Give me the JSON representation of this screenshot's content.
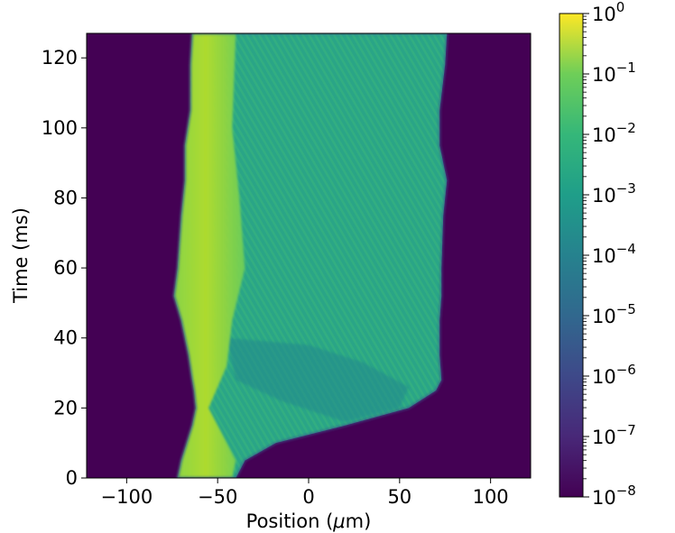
{
  "chart_data": {
    "type": "heatmap",
    "title": "",
    "xlabel_main": "Position (",
    "xlabel_mu": "μ",
    "xlabel_rest": "m)",
    "ylabel": "Time (ms)",
    "xlim": [
      -122,
      122
    ],
    "ylim": [
      0,
      127
    ],
    "x_ticks": [
      {
        "value": -100,
        "label": "−100"
      },
      {
        "value": -50,
        "label": "−50"
      },
      {
        "value": 0,
        "label": "0"
      },
      {
        "value": 50,
        "label": "50"
      },
      {
        "value": 100,
        "label": "100"
      }
    ],
    "y_ticks": [
      {
        "value": 0,
        "label": "0"
      },
      {
        "value": 20,
        "label": "20"
      },
      {
        "value": 40,
        "label": "40"
      },
      {
        "value": 60,
        "label": "60"
      },
      {
        "value": 80,
        "label": "80"
      },
      {
        "value": 100,
        "label": "100"
      },
      {
        "value": 120,
        "label": "120"
      }
    ],
    "colorbar": {
      "scale": "log",
      "colormap": "viridis",
      "range": [
        1e-08,
        1
      ],
      "ticks": [
        {
          "exp": 0,
          "base": "10",
          "sup": "0"
        },
        {
          "exp": -1,
          "base": "10",
          "sup": "−1"
        },
        {
          "exp": -2,
          "base": "10",
          "sup": "−2"
        },
        {
          "exp": -3,
          "base": "10",
          "sup": "−3"
        },
        {
          "exp": -4,
          "base": "10",
          "sup": "−4"
        },
        {
          "exp": -5,
          "base": "10",
          "sup": "−5"
        },
        {
          "exp": -6,
          "base": "10",
          "sup": "−6"
        },
        {
          "exp": -7,
          "base": "10",
          "sup": "−7"
        },
        {
          "exp": -8,
          "base": "10",
          "sup": "−8"
        }
      ]
    },
    "background_value": 1e-08,
    "boundary": [
      {
        "t": 0,
        "left": -72,
        "right": -40
      },
      {
        "t": 5,
        "left": -70,
        "right": -35
      },
      {
        "t": 10,
        "left": -67,
        "right": -18
      },
      {
        "t": 15,
        "left": -64,
        "right": 20
      },
      {
        "t": 20,
        "left": -62,
        "right": 55
      },
      {
        "t": 25,
        "left": -63,
        "right": 70
      },
      {
        "t": 28,
        "left": -64,
        "right": 73
      },
      {
        "t": 35,
        "left": -66,
        "right": 72
      },
      {
        "t": 45,
        "left": -70,
        "right": 72
      },
      {
        "t": 52,
        "left": -74,
        "right": 73
      },
      {
        "t": 60,
        "left": -72,
        "right": 73
      },
      {
        "t": 75,
        "left": -70,
        "right": 74
      },
      {
        "t": 85,
        "left": -68,
        "right": 76
      },
      {
        "t": 95,
        "left": -68,
        "right": 72
      },
      {
        "t": 105,
        "left": -65,
        "right": 72
      },
      {
        "t": 118,
        "left": -65,
        "right": 75
      },
      {
        "t": 127,
        "left": -64,
        "right": 76
      }
    ],
    "regions": [
      {
        "desc": "bright core",
        "value": 0.15
      },
      {
        "desc": "mid envelope",
        "value": 0.005
      },
      {
        "desc": "dark trough",
        "value": 0.0005
      }
    ]
  }
}
